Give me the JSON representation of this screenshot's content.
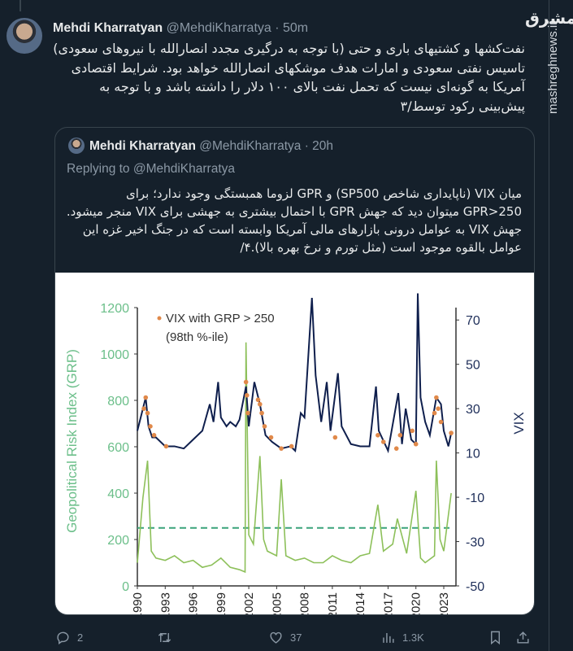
{
  "tweet": {
    "author_name": "Mehdi Kharratyan",
    "handle": "@MehdiKharratya",
    "time": "· 50m",
    "text": "نفت‌کشها و کشتیهای باری و حتی (با توجه به درگیری مجدد انصارالله با نیروهای سعودی) تاسیس نفتی سعودی و امارات هدف موشکهای انصارالله خواهد بود. شرایط اقتصادی آمریکا به گونه‌ای نیست که تحمل نفت بالای ۱۰۰ دلار را داشته باشد و با توجه به پیش‌بینی رکود توسط/۳",
    "stats": {
      "replies": "2",
      "likes": "37",
      "views": "1.3K"
    }
  },
  "quoted": {
    "author_name": "Mehdi Kharratyan",
    "handle": "@MehdiKharratya",
    "time": "· 20h",
    "replying_to": "Replying to @MehdiKharratya",
    "text": "میان VIX (ناپایداری شاخص SP500) و GPR لزوما همبستگی وجود ندارد؛ برای GPR>250 میتوان دید که جهش GPR با احتمال بیشتری به جهشی برای VIX منجر میشود. جهش VIX به عوامل درونی بازارهای مالی آمریکا وابسته است که در جنگ اخیر غزه این عوامل بالقوه موجود است (مثل تورم و نرخ بهره بالا).۴/"
  },
  "watermark": {
    "site": "mashreghnews.ir",
    "logo": "مشرق"
  },
  "icons": [
    "reply-icon",
    "retweet-icon",
    "like-icon",
    "views-icon",
    "bookmark-icon",
    "share-icon"
  ],
  "chart_data": {
    "type": "line",
    "legend": {
      "label_line1": "VIX with GRP > 250",
      "label_line2": "(98th %-ile)",
      "placement": "top-left"
    },
    "ylabel_left": "Geopolitical Risk Index (GRP)",
    "ylabel_right": "VIX",
    "ylim_left": [
      0,
      1200
    ],
    "yticks_left": [
      "0",
      "200",
      "400",
      "600",
      "800",
      "1000",
      "1200"
    ],
    "ylim_right": [
      -50,
      80
    ],
    "yticks_right": [
      "-50",
      "-30",
      "-10",
      "10",
      "30",
      "50",
      "70"
    ],
    "xlim": [
      1990,
      2024
    ],
    "xticks": [
      "1990",
      "1993",
      "1996",
      "1999",
      "2002",
      "2005",
      "2008",
      "2011",
      "2014",
      "2017",
      "2020",
      "2023"
    ],
    "threshold_left": 250,
    "colors": {
      "gpr": "#8dc05a",
      "vix": "#0f1f4d",
      "highlight": "#e0894a",
      "left_axis": "#6cbf8a",
      "right_axis": "#1f2f5a",
      "threshold": "#3aa37a"
    },
    "series": [
      {
        "key": "vix",
        "axis": "right",
        "x": [
          1990,
          1990.6,
          1990.9,
          1991.2,
          1991.6,
          1992,
          1993,
          1994,
          1995,
          1996,
          1997,
          1997.8,
          1998.2,
          1998.7,
          1999,
          1999.6,
          2000,
          2000.6,
          2001,
          2001.7,
          2002,
          2002.6,
          2003.2,
          2003.8,
          2004.5,
          2005.5,
          2006.5,
          2007,
          2007.6,
          2008,
          2008.8,
          2009.2,
          2009.8,
          2010.4,
          2010.8,
          2011.6,
          2012,
          2013,
          2014,
          2015,
          2015.7,
          2016,
          2017,
          2018.1,
          2018.5,
          2018.9,
          2019.5,
          2020,
          2020.2,
          2020.5,
          2021,
          2021.5,
          2022.2,
          2022.7,
          2023,
          2023.5,
          2023.8
        ],
        "y": [
          20,
          30,
          35,
          22,
          17,
          17,
          13,
          13,
          12,
          16,
          20,
          32,
          24,
          42,
          26,
          22,
          24,
          22,
          25,
          40,
          22,
          42,
          32,
          18,
          15,
          12,
          13,
          11,
          28,
          26,
          80,
          45,
          24,
          42,
          20,
          46,
          22,
          14,
          13,
          13,
          40,
          20,
          11,
          37,
          14,
          30,
          16,
          14,
          82,
          35,
          24,
          18,
          35,
          32,
          20,
          13,
          19
        ]
      },
      {
        "key": "gpr",
        "axis": "left",
        "x": [
          1990,
          1990.6,
          1991.1,
          1991.5,
          1992,
          1993,
          1994,
          1995,
          1996,
          1997,
          1998,
          1999,
          2000,
          2001,
          2001.6,
          2001.7,
          2002,
          2002.5,
          2003.2,
          2003.6,
          2004,
          2005,
          2005.5,
          2006,
          2007,
          2008,
          2009,
          2010,
          2011,
          2012,
          2013,
          2014,
          2015,
          2015.9,
          2016.5,
          2017.5,
          2018,
          2019,
          2020,
          2020.5,
          2021,
          2022,
          2022.2,
          2022.6,
          2023,
          2023.8
        ],
        "y": [
          100,
          380,
          540,
          150,
          120,
          110,
          130,
          100,
          110,
          80,
          90,
          120,
          80,
          70,
          60,
          1050,
          220,
          180,
          560,
          200,
          150,
          130,
          460,
          130,
          110,
          120,
          100,
          100,
          130,
          110,
          100,
          130,
          140,
          350,
          150,
          180,
          290,
          140,
          410,
          120,
          100,
          130,
          540,
          200,
          150,
          400
        ]
      },
      {
        "key": "highlight",
        "axis": "right",
        "x": [
          1990.7,
          1990.9,
          1991.1,
          1991.4,
          1991.8,
          1993.1,
          2001.7,
          2001.8,
          2001.9,
          2003,
          2003.2,
          2003.4,
          2003.7,
          2004.4,
          2005.5,
          2006.6,
          2011.3,
          2015.9,
          2016.5,
          2017.9,
          2018.3,
          2019.6,
          2020,
          2022,
          2022.2,
          2022.4,
          2022.7,
          2023.8
        ],
        "y": [
          30,
          35,
          28,
          22,
          18,
          13,
          42,
          36,
          28,
          34,
          32,
          28,
          22,
          17,
          12,
          13,
          17,
          18,
          15,
          12,
          18,
          20,
          14,
          28,
          35,
          30,
          24,
          19
        ]
      }
    ]
  }
}
